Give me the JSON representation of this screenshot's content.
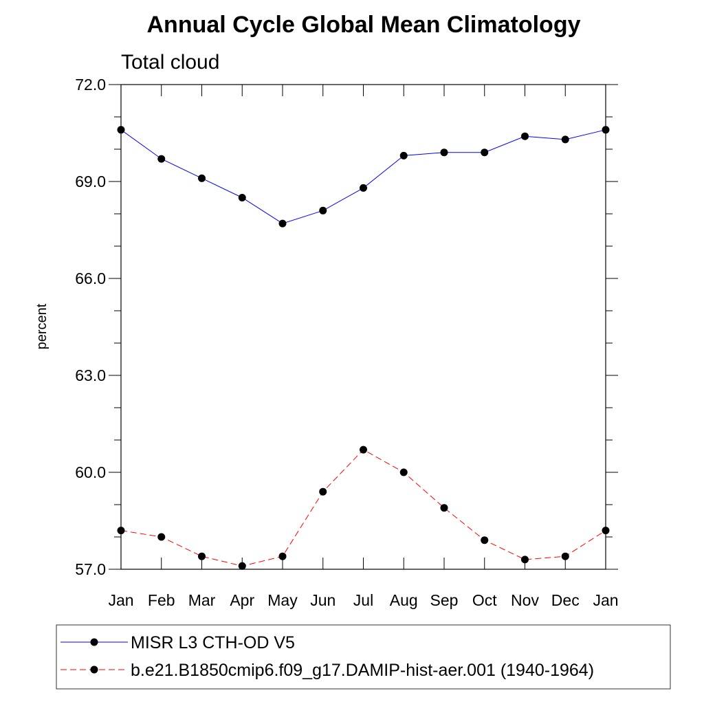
{
  "chart_data": {
    "type": "line",
    "title": "Annual Cycle Global Mean Climatology",
    "subtitle": "Total cloud",
    "ylabel": "percent",
    "xlabel": "",
    "ylim": [
      57.0,
      72.0
    ],
    "yticks": [
      "72.0",
      "69.0",
      "66.0",
      "63.0",
      "60.0",
      "57.0"
    ],
    "ytick_values": [
      72,
      69,
      66,
      63,
      60,
      57
    ],
    "categories": [
      "Jan",
      "Feb",
      "Mar",
      "Apr",
      "May",
      "Jun",
      "Jul",
      "Aug",
      "Sep",
      "Oct",
      "Nov",
      "Dec",
      "Jan"
    ],
    "grid": false,
    "legend_position": "bottom",
    "series": [
      {
        "name": "MISR L3 CTH-OD V5",
        "color": "#0000ff",
        "line_style": "solid",
        "marker": "filled-circle",
        "values": [
          70.6,
          69.7,
          69.1,
          68.5,
          67.7,
          68.1,
          68.8,
          69.8,
          69.9,
          69.9,
          70.4,
          70.3,
          70.6
        ]
      },
      {
        "name": "b.e21.B1850cmip6.f09_g17.DAMIP-hist-aer.001 (1940-1964)",
        "color": "#ff0000",
        "line_style": "dashed",
        "marker": "filled-circle",
        "values": [
          58.2,
          58.0,
          57.4,
          57.1,
          57.4,
          59.4,
          60.7,
          60.0,
          58.9,
          57.9,
          57.3,
          57.4,
          58.2
        ]
      }
    ]
  }
}
